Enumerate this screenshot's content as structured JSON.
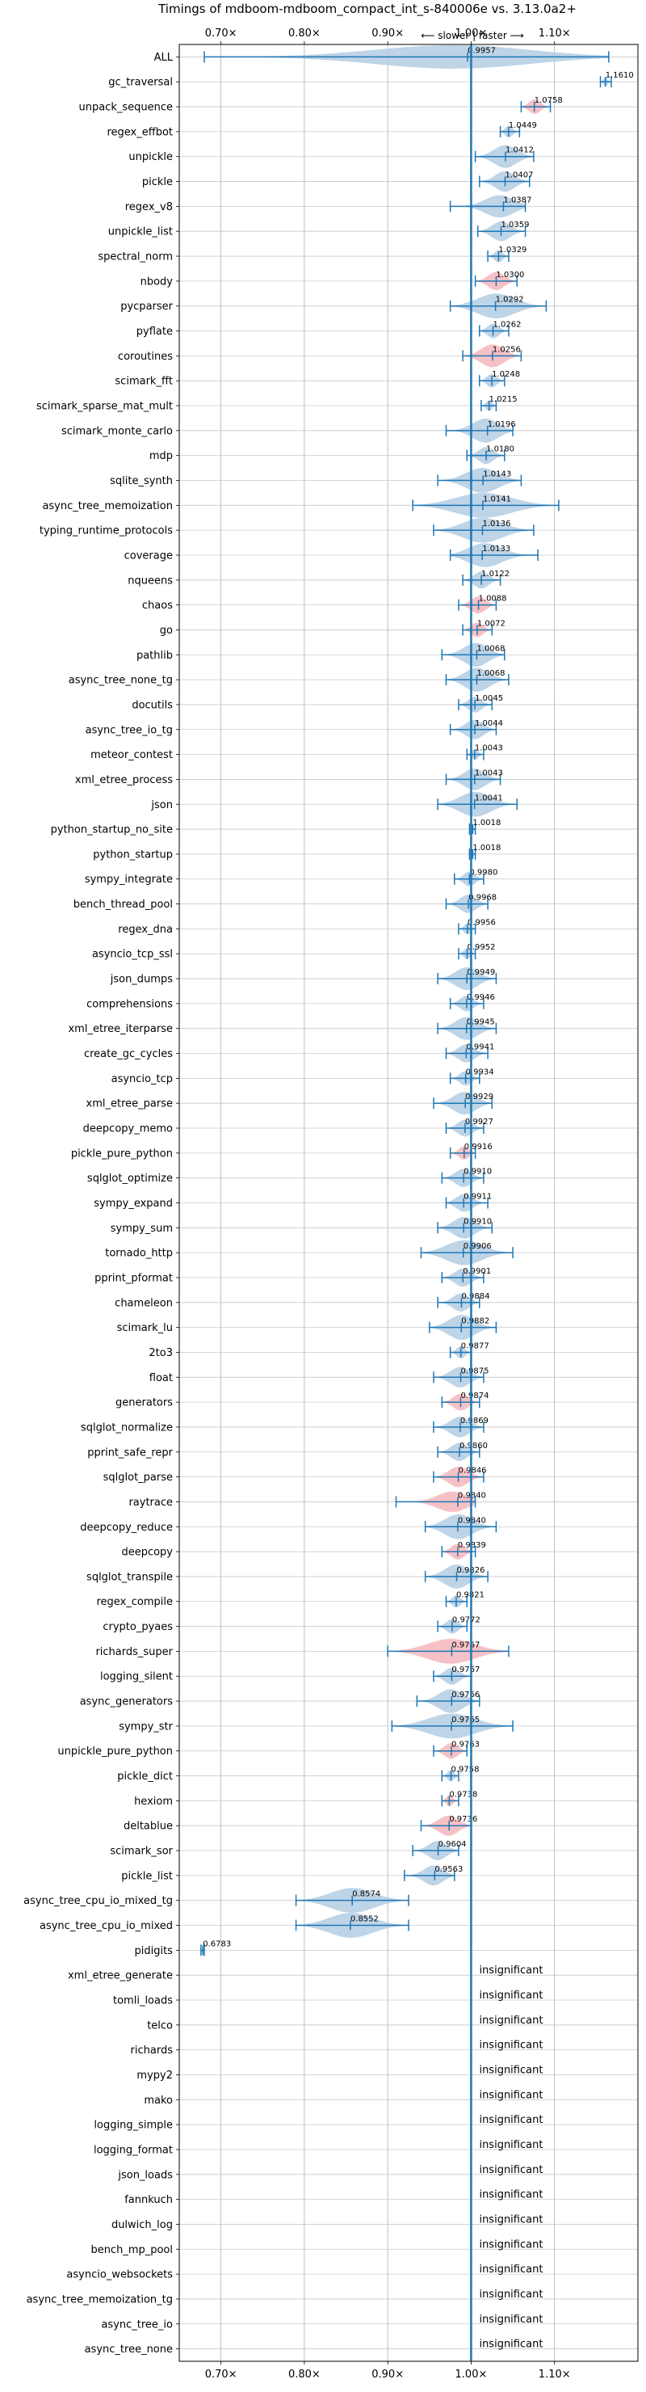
{
  "chart_data": {
    "type": "violin",
    "title": "Timings of mdboom-mdboom_compact_int_s-840006e vs. 3.13.0a2+",
    "direction_label": "⟵ slower | faster ⟶",
    "xlim": [
      0.65,
      1.2
    ],
    "x_ticks": [
      0.7,
      0.8,
      0.9,
      1.0,
      1.1
    ],
    "x_tick_labels": [
      "0.70×",
      "0.80×",
      "0.90×",
      "1.00×",
      "1.10×"
    ],
    "grid": true,
    "colors": {
      "faster": "#b3cde3",
      "slower": "#f4b6bc",
      "line": "#1f77b4",
      "reference": "#1f77b4"
    },
    "insignificant_label": "insignificant",
    "benchmarks": [
      {
        "name": "ALL",
        "value": 0.9957,
        "label": "0.9957",
        "lo": 0.68,
        "hi": 1.165,
        "color": "faster"
      },
      {
        "name": "gc_traversal",
        "value": 1.161,
        "label": "1.1610",
        "lo": 1.155,
        "hi": 1.168,
        "color": "faster"
      },
      {
        "name": "unpack_sequence",
        "value": 1.0758,
        "label": "1.0758",
        "lo": 1.06,
        "hi": 1.095,
        "color": "slower"
      },
      {
        "name": "regex_effbot",
        "value": 1.0449,
        "label": "1.0449",
        "lo": 1.035,
        "hi": 1.058,
        "color": "faster"
      },
      {
        "name": "unpickle",
        "value": 1.0412,
        "label": "1.0412",
        "lo": 1.005,
        "hi": 1.075,
        "color": "faster"
      },
      {
        "name": "pickle",
        "value": 1.0407,
        "label": "1.0407",
        "lo": 1.01,
        "hi": 1.07,
        "color": "faster"
      },
      {
        "name": "regex_v8",
        "value": 1.0387,
        "label": "1.0387",
        "lo": 0.975,
        "hi": 1.065,
        "color": "faster"
      },
      {
        "name": "unpickle_list",
        "value": 1.0359,
        "label": "1.0359",
        "lo": 1.008,
        "hi": 1.065,
        "color": "faster"
      },
      {
        "name": "spectral_norm",
        "value": 1.0329,
        "label": "1.0329",
        "lo": 1.02,
        "hi": 1.045,
        "color": "faster"
      },
      {
        "name": "nbody",
        "value": 1.03,
        "label": "1.0300",
        "lo": 1.005,
        "hi": 1.055,
        "color": "slower"
      },
      {
        "name": "pycparser",
        "value": 1.0292,
        "label": "1.0292",
        "lo": 0.975,
        "hi": 1.09,
        "color": "faster"
      },
      {
        "name": "pyflate",
        "value": 1.0262,
        "label": "1.0262",
        "lo": 1.01,
        "hi": 1.045,
        "color": "faster"
      },
      {
        "name": "coroutines",
        "value": 1.0256,
        "label": "1.0256",
        "lo": 0.99,
        "hi": 1.06,
        "color": "slower"
      },
      {
        "name": "scimark_fft",
        "value": 1.0248,
        "label": "1.0248",
        "lo": 1.01,
        "hi": 1.04,
        "color": "faster"
      },
      {
        "name": "scimark_sparse_mat_mult",
        "value": 1.0215,
        "label": "1.0215",
        "lo": 1.012,
        "hi": 1.03,
        "color": "faster"
      },
      {
        "name": "scimark_monte_carlo",
        "value": 1.0196,
        "label": "1.0196",
        "lo": 0.97,
        "hi": 1.05,
        "color": "faster"
      },
      {
        "name": "mdp",
        "value": 1.018,
        "label": "1.0180",
        "lo": 0.995,
        "hi": 1.04,
        "color": "faster"
      },
      {
        "name": "sqlite_synth",
        "value": 1.0143,
        "label": "1.0143",
        "lo": 0.96,
        "hi": 1.06,
        "color": "faster"
      },
      {
        "name": "async_tree_memoization",
        "value": 1.0141,
        "label": "1.0141",
        "lo": 0.93,
        "hi": 1.105,
        "color": "faster"
      },
      {
        "name": "typing_runtime_protocols",
        "value": 1.0136,
        "label": "1.0136",
        "lo": 0.955,
        "hi": 1.075,
        "color": "faster"
      },
      {
        "name": "coverage",
        "value": 1.0133,
        "label": "1.0133",
        "lo": 0.975,
        "hi": 1.08,
        "color": "faster"
      },
      {
        "name": "nqueens",
        "value": 1.0122,
        "label": "1.0122",
        "lo": 0.99,
        "hi": 1.035,
        "color": "faster"
      },
      {
        "name": "chaos",
        "value": 1.0088,
        "label": "1.0088",
        "lo": 0.985,
        "hi": 1.03,
        "color": "slower"
      },
      {
        "name": "go",
        "value": 1.0072,
        "label": "1.0072",
        "lo": 0.99,
        "hi": 1.025,
        "color": "slower"
      },
      {
        "name": "pathlib",
        "value": 1.0068,
        "label": "1.0068",
        "lo": 0.965,
        "hi": 1.04,
        "color": "faster"
      },
      {
        "name": "async_tree_none_tg",
        "value": 1.0068,
        "label": "1.0068",
        "lo": 0.97,
        "hi": 1.045,
        "color": "faster"
      },
      {
        "name": "docutils",
        "value": 1.0045,
        "label": "1.0045",
        "lo": 0.985,
        "hi": 1.025,
        "color": "faster"
      },
      {
        "name": "async_tree_io_tg",
        "value": 1.0044,
        "label": "1.0044",
        "lo": 0.975,
        "hi": 1.03,
        "color": "faster"
      },
      {
        "name": "meteor_contest",
        "value": 1.0043,
        "label": "1.0043",
        "lo": 0.995,
        "hi": 1.015,
        "color": "faster"
      },
      {
        "name": "xml_etree_process",
        "value": 1.0043,
        "label": "1.0043",
        "lo": 0.97,
        "hi": 1.035,
        "color": "faster"
      },
      {
        "name": "json",
        "value": 1.0041,
        "label": "1.0041",
        "lo": 0.96,
        "hi": 1.055,
        "color": "faster"
      },
      {
        "name": "python_startup_no_site",
        "value": 1.0018,
        "label": "1.0018",
        "lo": 0.998,
        "hi": 1.005,
        "color": "faster"
      },
      {
        "name": "python_startup",
        "value": 1.0018,
        "label": "1.0018",
        "lo": 0.998,
        "hi": 1.005,
        "color": "faster"
      },
      {
        "name": "sympy_integrate",
        "value": 0.998,
        "label": "0.9980",
        "lo": 0.98,
        "hi": 1.015,
        "color": "faster"
      },
      {
        "name": "bench_thread_pool",
        "value": 0.9968,
        "label": "0.9968",
        "lo": 0.97,
        "hi": 1.02,
        "color": "faster"
      },
      {
        "name": "regex_dna",
        "value": 0.9956,
        "label": "0.9956",
        "lo": 0.985,
        "hi": 1.005,
        "color": "faster"
      },
      {
        "name": "asyncio_tcp_ssl",
        "value": 0.9952,
        "label": "0.9952",
        "lo": 0.985,
        "hi": 1.005,
        "color": "faster"
      },
      {
        "name": "json_dumps",
        "value": 0.9949,
        "label": "0.9949",
        "lo": 0.96,
        "hi": 1.03,
        "color": "faster"
      },
      {
        "name": "comprehensions",
        "value": 0.9946,
        "label": "0.9946",
        "lo": 0.975,
        "hi": 1.015,
        "color": "faster"
      },
      {
        "name": "xml_etree_iterparse",
        "value": 0.9945,
        "label": "0.9945",
        "lo": 0.96,
        "hi": 1.03,
        "color": "faster"
      },
      {
        "name": "create_gc_cycles",
        "value": 0.9941,
        "label": "0.9941",
        "lo": 0.97,
        "hi": 1.02,
        "color": "faster"
      },
      {
        "name": "asyncio_tcp",
        "value": 0.9934,
        "label": "0.9934",
        "lo": 0.975,
        "hi": 1.01,
        "color": "faster"
      },
      {
        "name": "xml_etree_parse",
        "value": 0.9929,
        "label": "0.9929",
        "lo": 0.955,
        "hi": 1.025,
        "color": "faster"
      },
      {
        "name": "deepcopy_memo",
        "value": 0.9927,
        "label": "0.9927",
        "lo": 0.97,
        "hi": 1.015,
        "color": "faster"
      },
      {
        "name": "pickle_pure_python",
        "value": 0.9916,
        "label": "0.9916",
        "lo": 0.975,
        "hi": 1.005,
        "color": "slower"
      },
      {
        "name": "sqlglot_optimize",
        "value": 0.991,
        "label": "0.9910",
        "lo": 0.965,
        "hi": 1.015,
        "color": "faster"
      },
      {
        "name": "sympy_expand",
        "value": 0.9911,
        "label": "0.9911",
        "lo": 0.97,
        "hi": 1.02,
        "color": "faster"
      },
      {
        "name": "sympy_sum",
        "value": 0.991,
        "label": "0.9910",
        "lo": 0.96,
        "hi": 1.025,
        "color": "faster"
      },
      {
        "name": "tornado_http",
        "value": 0.9906,
        "label": "0.9906",
        "lo": 0.94,
        "hi": 1.05,
        "color": "faster"
      },
      {
        "name": "pprint_pformat",
        "value": 0.9901,
        "label": "0.9901",
        "lo": 0.965,
        "hi": 1.015,
        "color": "faster"
      },
      {
        "name": "chameleon",
        "value": 0.9884,
        "label": "0.9884",
        "lo": 0.96,
        "hi": 1.01,
        "color": "faster"
      },
      {
        "name": "scimark_lu",
        "value": 0.9882,
        "label": "0.9882",
        "lo": 0.95,
        "hi": 1.03,
        "color": "faster"
      },
      {
        "name": "2to3",
        "value": 0.9877,
        "label": "0.9877",
        "lo": 0.975,
        "hi": 1.0,
        "color": "faster"
      },
      {
        "name": "float",
        "value": 0.9875,
        "label": "0.9875",
        "lo": 0.955,
        "hi": 1.015,
        "color": "faster"
      },
      {
        "name": "generators",
        "value": 0.9874,
        "label": "0.9874",
        "lo": 0.965,
        "hi": 1.01,
        "color": "slower"
      },
      {
        "name": "sqlglot_normalize",
        "value": 0.9869,
        "label": "0.9869",
        "lo": 0.955,
        "hi": 1.015,
        "color": "faster"
      },
      {
        "name": "pprint_safe_repr",
        "value": 0.986,
        "label": "0.9860",
        "lo": 0.96,
        "hi": 1.01,
        "color": "faster"
      },
      {
        "name": "sqlglot_parse",
        "value": 0.9846,
        "label": "0.9846",
        "lo": 0.955,
        "hi": 1.015,
        "color": "slower"
      },
      {
        "name": "raytrace",
        "value": 0.984,
        "label": "0.9840",
        "lo": 0.91,
        "hi": 1.005,
        "color": "slower"
      },
      {
        "name": "deepcopy_reduce",
        "value": 0.984,
        "label": "0.9840",
        "lo": 0.945,
        "hi": 1.03,
        "color": "faster"
      },
      {
        "name": "deepcopy",
        "value": 0.9839,
        "label": "0.9839",
        "lo": 0.965,
        "hi": 1.005,
        "color": "slower"
      },
      {
        "name": "sqlglot_transpile",
        "value": 0.9826,
        "label": "0.9826",
        "lo": 0.945,
        "hi": 1.02,
        "color": "faster"
      },
      {
        "name": "regex_compile",
        "value": 0.9821,
        "label": "0.9821",
        "lo": 0.97,
        "hi": 0.995,
        "color": "faster"
      },
      {
        "name": "crypto_pyaes",
        "value": 0.9772,
        "label": "0.9772",
        "lo": 0.96,
        "hi": 0.995,
        "color": "faster"
      },
      {
        "name": "richards_super",
        "value": 0.9767,
        "label": "0.9767",
        "lo": 0.9,
        "hi": 1.045,
        "color": "slower"
      },
      {
        "name": "logging_silent",
        "value": 0.9767,
        "label": "0.9767",
        "lo": 0.955,
        "hi": 1.0,
        "color": "faster"
      },
      {
        "name": "async_generators",
        "value": 0.9766,
        "label": "0.9766",
        "lo": 0.935,
        "hi": 1.01,
        "color": "faster"
      },
      {
        "name": "sympy_str",
        "value": 0.9765,
        "label": "0.9765",
        "lo": 0.905,
        "hi": 1.05,
        "color": "faster"
      },
      {
        "name": "unpickle_pure_python",
        "value": 0.9763,
        "label": "0.9763",
        "lo": 0.955,
        "hi": 0.995,
        "color": "slower"
      },
      {
        "name": "pickle_dict",
        "value": 0.9758,
        "label": "0.9758",
        "lo": 0.965,
        "hi": 0.985,
        "color": "faster"
      },
      {
        "name": "hexiom",
        "value": 0.9738,
        "label": "0.9738",
        "lo": 0.965,
        "hi": 0.985,
        "color": "slower"
      },
      {
        "name": "deltablue",
        "value": 0.9736,
        "label": "0.9736",
        "lo": 0.94,
        "hi": 1.0,
        "color": "slower"
      },
      {
        "name": "scimark_sor",
        "value": 0.9604,
        "label": "0.9604",
        "lo": 0.93,
        "hi": 0.985,
        "color": "faster"
      },
      {
        "name": "pickle_list",
        "value": 0.9563,
        "label": "0.9563",
        "lo": 0.92,
        "hi": 0.98,
        "color": "faster"
      },
      {
        "name": "async_tree_cpu_io_mixed_tg",
        "value": 0.8574,
        "label": "0.8574",
        "lo": 0.79,
        "hi": 0.925,
        "color": "faster"
      },
      {
        "name": "async_tree_cpu_io_mixed",
        "value": 0.8552,
        "label": "0.8552",
        "lo": 0.79,
        "hi": 0.925,
        "color": "faster"
      },
      {
        "name": "pidigits",
        "value": 0.6783,
        "label": "0.6783",
        "lo": 0.676,
        "hi": 0.68,
        "color": "faster"
      },
      {
        "name": "xml_etree_generate",
        "insignificant": true
      },
      {
        "name": "tomli_loads",
        "insignificant": true
      },
      {
        "name": "telco",
        "insignificant": true
      },
      {
        "name": "richards",
        "insignificant": true
      },
      {
        "name": "mypy2",
        "insignificant": true
      },
      {
        "name": "mako",
        "insignificant": true
      },
      {
        "name": "logging_simple",
        "insignificant": true
      },
      {
        "name": "logging_format",
        "insignificant": true
      },
      {
        "name": "json_loads",
        "insignificant": true
      },
      {
        "name": "fannkuch",
        "insignificant": true
      },
      {
        "name": "dulwich_log",
        "insignificant": true
      },
      {
        "name": "bench_mp_pool",
        "insignificant": true
      },
      {
        "name": "asyncio_websockets",
        "insignificant": true
      },
      {
        "name": "async_tree_memoization_tg",
        "insignificant": true
      },
      {
        "name": "async_tree_io",
        "insignificant": true
      },
      {
        "name": "async_tree_none",
        "insignificant": true
      }
    ]
  }
}
